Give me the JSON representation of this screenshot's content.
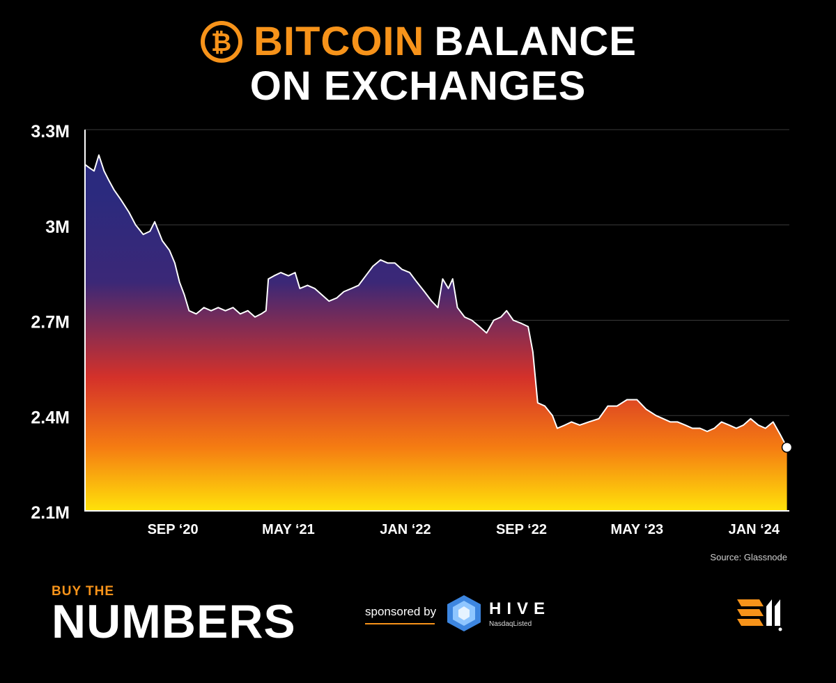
{
  "title": {
    "line1_orange": "BITCOIN",
    "line1_white": "BALANCE",
    "line2": "ON EXCHANGES"
  },
  "colors": {
    "accent": "#f7931a",
    "background": "#000000",
    "line": "#ffffff",
    "gradient": [
      "#2b2a7e",
      "#3b2877",
      "#d4312a",
      "#f57c12",
      "#ffe20a"
    ]
  },
  "source": "Source: Glassnode",
  "brand": {
    "small": "BUY THE",
    "big": "NUMBERS"
  },
  "sponsor": {
    "label": "sponsored by",
    "name": "HIVE",
    "sub": "NasdaqListed"
  },
  "icons": {
    "title": "bitcoin-icon",
    "sponsor": "hive-hexagon-icon",
    "corner": "bm-logo-icon"
  },
  "chart_data": {
    "type": "area",
    "title": "BITCOIN BALANCE ON EXCHANGES",
    "xlabel": "",
    "ylabel": "",
    "grid": true,
    "legend": "none",
    "ylim": [
      2100000,
      3300000
    ],
    "y_ticks": [
      {
        "value": 3300000,
        "label": "3.3M"
      },
      {
        "value": 3000000,
        "label": "3M"
      },
      {
        "value": 2700000,
        "label": "2.7M"
      },
      {
        "value": 2400000,
        "label": "2.4M"
      },
      {
        "value": 2100000,
        "label": "2.1M"
      }
    ],
    "x_ticks": [
      {
        "date": "2020-09-01",
        "label": "SEP ‘20"
      },
      {
        "date": "2021-05-01",
        "label": "MAY ‘21"
      },
      {
        "date": "2022-01-01",
        "label": "JAN ‘22"
      },
      {
        "date": "2022-09-01",
        "label": "SEP ‘22"
      },
      {
        "date": "2023-05-01",
        "label": "MAY ‘23"
      },
      {
        "date": "2024-01-01",
        "label": "JAN ‘24"
      }
    ],
    "xlim": [
      "2020-03-01",
      "2024-03-15"
    ],
    "series": [
      {
        "name": "",
        "points": [
          [
            "2020-03-01",
            3190000
          ],
          [
            "2020-03-10",
            3180000
          ],
          [
            "2020-03-20",
            3170000
          ],
          [
            "2020-03-30",
            3220000
          ],
          [
            "2020-04-10",
            3170000
          ],
          [
            "2020-04-20",
            3140000
          ],
          [
            "2020-05-01",
            3110000
          ],
          [
            "2020-05-15",
            3080000
          ],
          [
            "2020-06-01",
            3040000
          ],
          [
            "2020-06-15",
            3000000
          ],
          [
            "2020-07-01",
            2970000
          ],
          [
            "2020-07-15",
            2980000
          ],
          [
            "2020-07-25",
            3010000
          ],
          [
            "2020-08-10",
            2950000
          ],
          [
            "2020-08-25",
            2920000
          ],
          [
            "2020-09-05",
            2880000
          ],
          [
            "2020-09-15",
            2820000
          ],
          [
            "2020-09-25",
            2780000
          ],
          [
            "2020-10-05",
            2730000
          ],
          [
            "2020-10-20",
            2720000
          ],
          [
            "2020-11-05",
            2740000
          ],
          [
            "2020-11-20",
            2730000
          ],
          [
            "2020-12-05",
            2740000
          ],
          [
            "2020-12-20",
            2730000
          ],
          [
            "2021-01-05",
            2740000
          ],
          [
            "2021-01-20",
            2720000
          ],
          [
            "2021-02-05",
            2730000
          ],
          [
            "2021-02-20",
            2710000
          ],
          [
            "2021-03-05",
            2720000
          ],
          [
            "2021-03-15",
            2730000
          ],
          [
            "2021-03-20",
            2830000
          ],
          [
            "2021-04-01",
            2840000
          ],
          [
            "2021-04-15",
            2850000
          ],
          [
            "2021-05-01",
            2840000
          ],
          [
            "2021-05-15",
            2850000
          ],
          [
            "2021-05-25",
            2800000
          ],
          [
            "2021-06-10",
            2810000
          ],
          [
            "2021-06-25",
            2800000
          ],
          [
            "2021-07-10",
            2780000
          ],
          [
            "2021-07-25",
            2760000
          ],
          [
            "2021-08-10",
            2770000
          ],
          [
            "2021-08-25",
            2790000
          ],
          [
            "2021-09-10",
            2800000
          ],
          [
            "2021-09-25",
            2810000
          ],
          [
            "2021-10-10",
            2840000
          ],
          [
            "2021-10-25",
            2870000
          ],
          [
            "2021-11-10",
            2890000
          ],
          [
            "2021-11-25",
            2880000
          ],
          [
            "2021-12-10",
            2880000
          ],
          [
            "2021-12-25",
            2860000
          ],
          [
            "2022-01-10",
            2850000
          ],
          [
            "2022-01-25",
            2820000
          ],
          [
            "2022-02-10",
            2790000
          ],
          [
            "2022-02-25",
            2760000
          ],
          [
            "2022-03-10",
            2740000
          ],
          [
            "2022-03-20",
            2830000
          ],
          [
            "2022-04-01",
            2800000
          ],
          [
            "2022-04-10",
            2830000
          ],
          [
            "2022-04-20",
            2740000
          ],
          [
            "2022-05-05",
            2710000
          ],
          [
            "2022-05-20",
            2700000
          ],
          [
            "2022-06-05",
            2680000
          ],
          [
            "2022-06-20",
            2660000
          ],
          [
            "2022-07-05",
            2700000
          ],
          [
            "2022-07-20",
            2710000
          ],
          [
            "2022-08-01",
            2730000
          ],
          [
            "2022-08-15",
            2700000
          ],
          [
            "2022-09-01",
            2690000
          ],
          [
            "2022-09-15",
            2680000
          ],
          [
            "2022-09-25",
            2600000
          ],
          [
            "2022-10-05",
            2440000
          ],
          [
            "2022-10-20",
            2430000
          ],
          [
            "2022-11-05",
            2400000
          ],
          [
            "2022-11-15",
            2360000
          ],
          [
            "2022-12-01",
            2370000
          ],
          [
            "2022-12-15",
            2380000
          ],
          [
            "2023-01-01",
            2370000
          ],
          [
            "2023-01-20",
            2380000
          ],
          [
            "2023-02-10",
            2390000
          ],
          [
            "2023-03-01",
            2430000
          ],
          [
            "2023-03-20",
            2430000
          ],
          [
            "2023-04-10",
            2450000
          ],
          [
            "2023-05-01",
            2450000
          ],
          [
            "2023-05-20",
            2420000
          ],
          [
            "2023-06-10",
            2400000
          ],
          [
            "2023-06-25",
            2390000
          ],
          [
            "2023-07-10",
            2380000
          ],
          [
            "2023-07-25",
            2380000
          ],
          [
            "2023-08-10",
            2370000
          ],
          [
            "2023-08-25",
            2360000
          ],
          [
            "2023-09-10",
            2360000
          ],
          [
            "2023-09-25",
            2350000
          ],
          [
            "2023-10-10",
            2360000
          ],
          [
            "2023-10-25",
            2380000
          ],
          [
            "2023-11-10",
            2370000
          ],
          [
            "2023-11-25",
            2360000
          ],
          [
            "2023-12-10",
            2370000
          ],
          [
            "2023-12-25",
            2390000
          ],
          [
            "2024-01-10",
            2370000
          ],
          [
            "2024-01-25",
            2360000
          ],
          [
            "2024-02-10",
            2380000
          ],
          [
            "2024-02-25",
            2340000
          ],
          [
            "2024-03-10",
            2300000
          ]
        ]
      }
    ]
  }
}
